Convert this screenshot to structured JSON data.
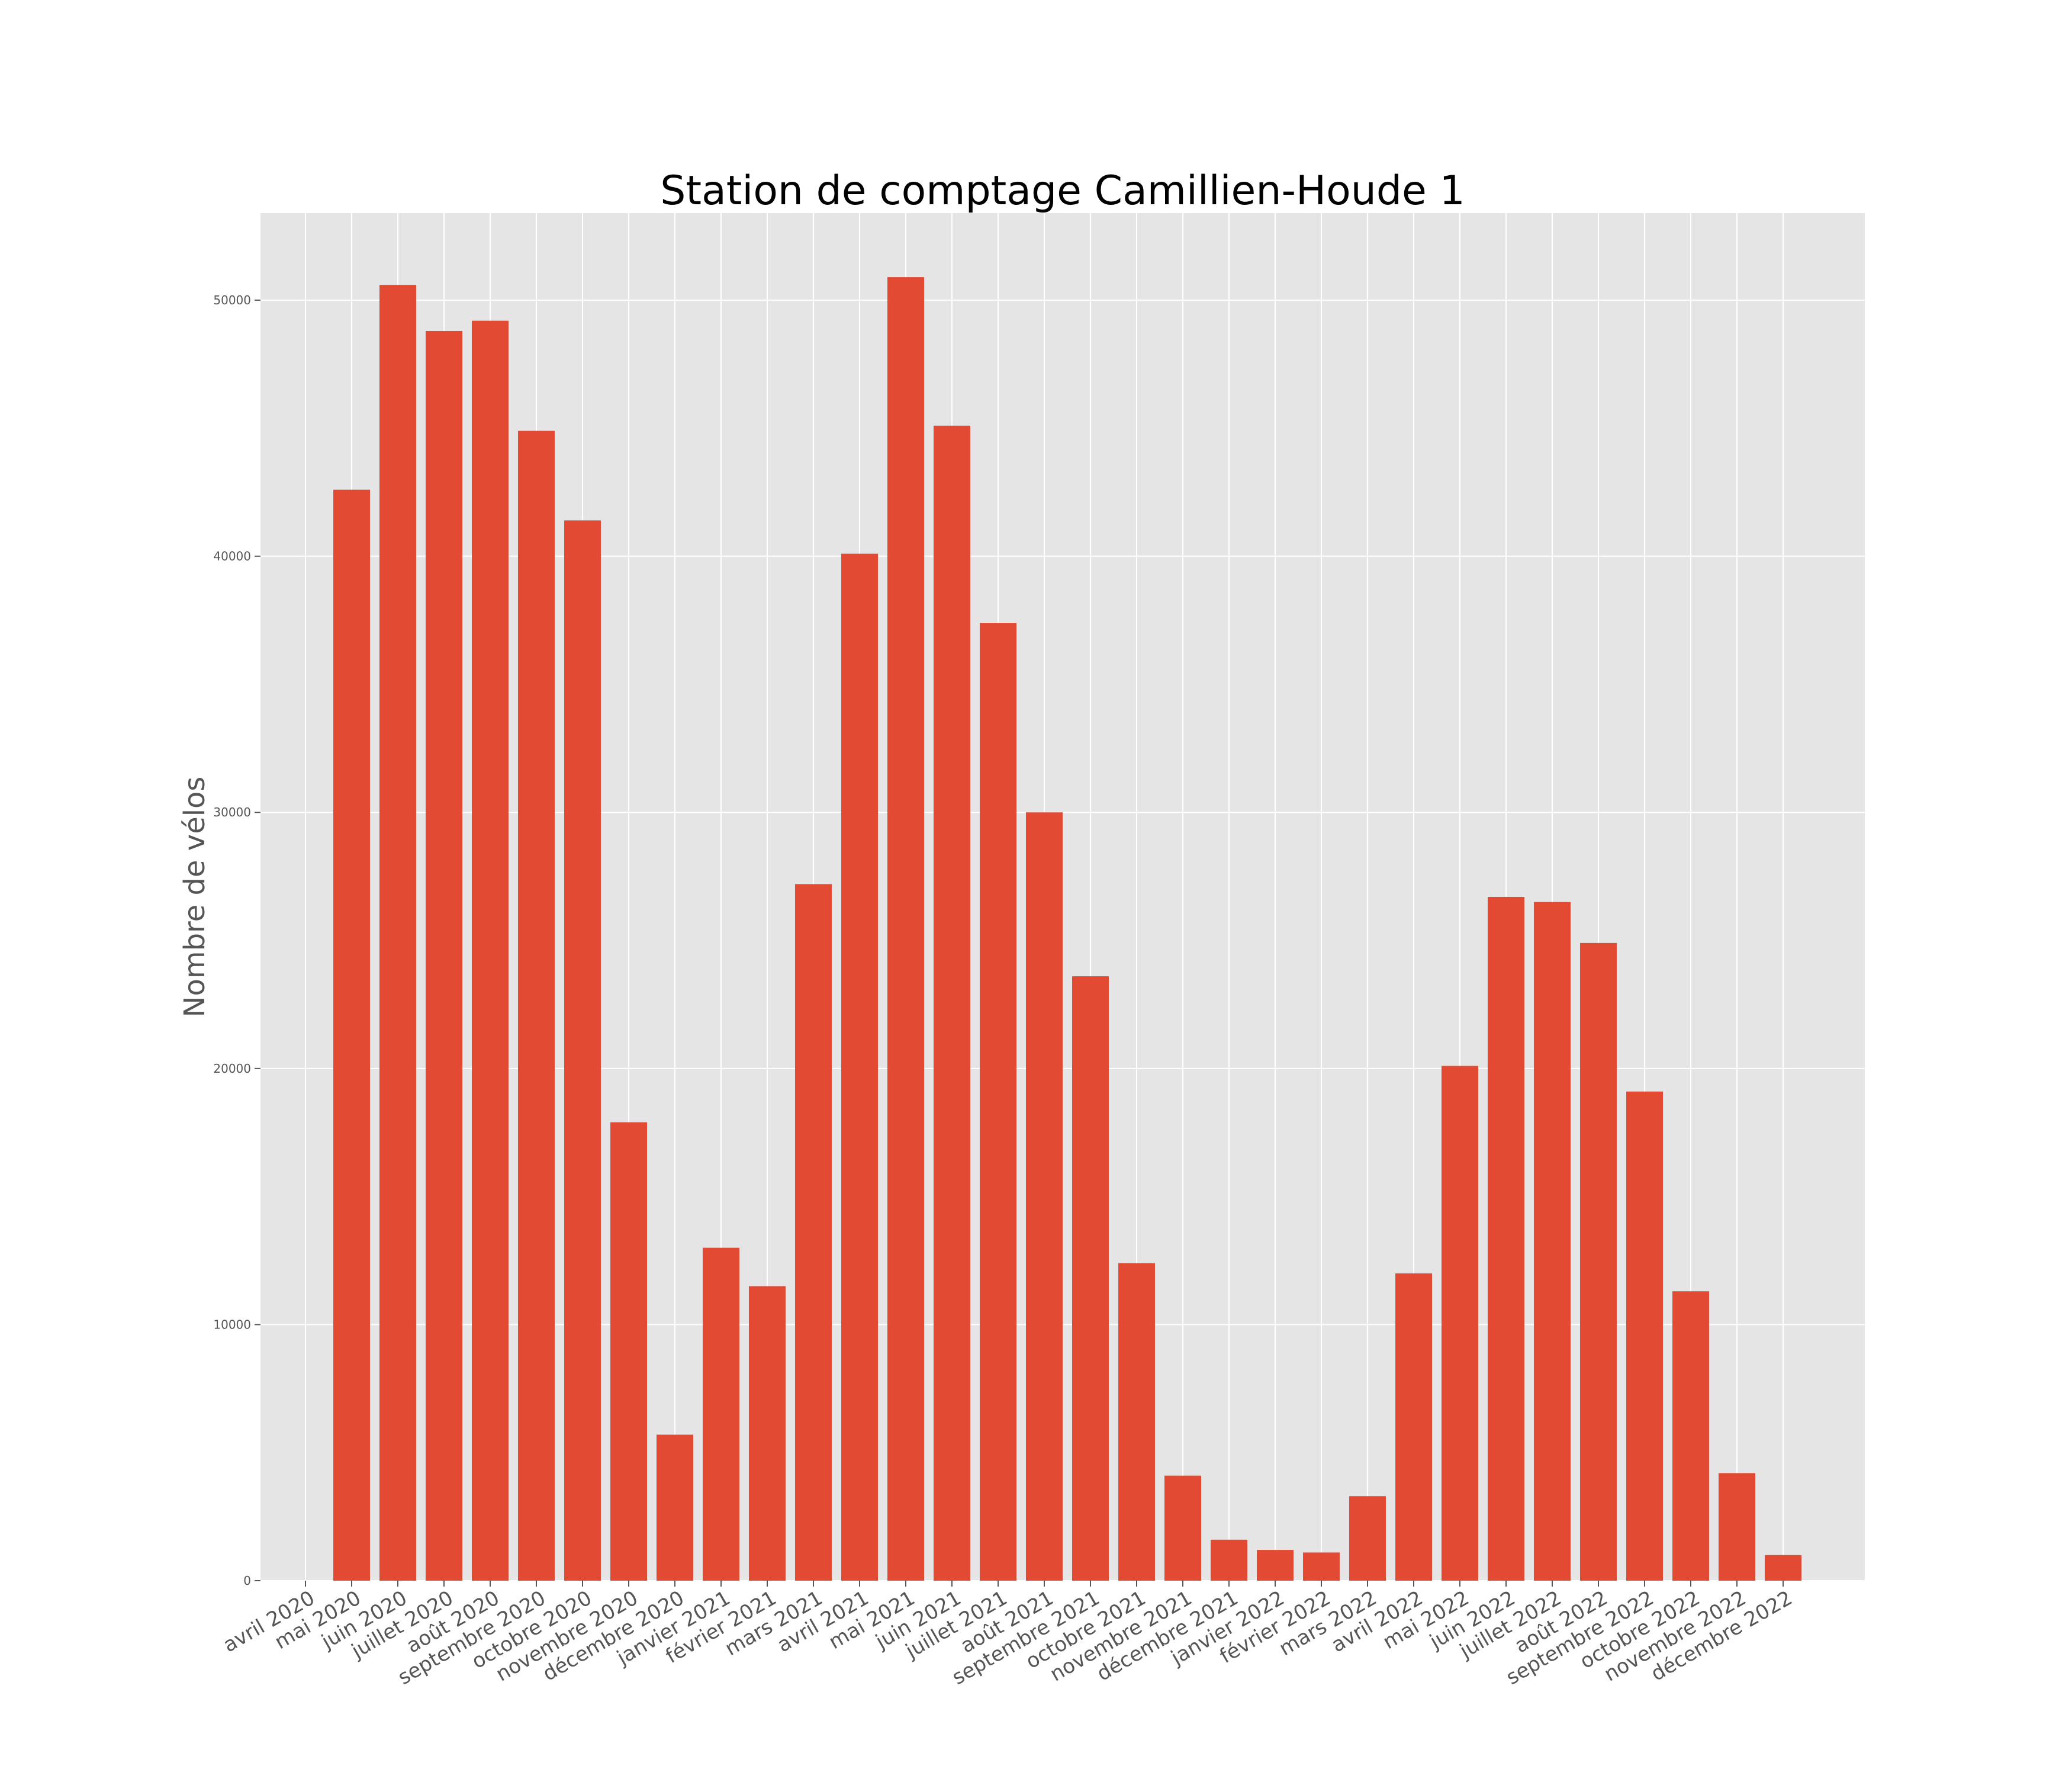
{
  "chart_data": {
    "type": "bar",
    "title": "Station de comptage Camillien-Houde 1",
    "xlabel": "",
    "ylabel": "Nombre de vélos",
    "ylim": [
      0,
      53400
    ],
    "yticks": [
      0,
      10000,
      20000,
      30000,
      40000,
      50000
    ],
    "grid": true,
    "bar_color": "#E24A33",
    "plot_background": "#E5E5E5",
    "grid_color": "#FFFFFF",
    "categories": [
      "avril 2020",
      "mai 2020",
      "juin 2020",
      "juillet 2020",
      "août 2020",
      "septembre 2020",
      "octobre 2020",
      "novembre 2020",
      "décembre 2020",
      "janvier 2021",
      "février 2021",
      "mars 2021",
      "avril 2021",
      "mai 2021",
      "juin 2021",
      "juillet 2021",
      "août 2021",
      "septembre 2021",
      "octobre 2021",
      "novembre 2021",
      "décembre 2021",
      "janvier 2022",
      "février 2022",
      "mars 2022",
      "avril 2022",
      "mai 2022",
      "juin 2022",
      "juillet 2022",
      "août 2022",
      "septembre 2022",
      "octobre 2022",
      "novembre 2022",
      "décembre 2022"
    ],
    "values": [
      0,
      42600,
      50600,
      48800,
      49200,
      44900,
      41400,
      17900,
      5700,
      13000,
      11500,
      27200,
      40100,
      50900,
      45100,
      37400,
      30000,
      23600,
      12400,
      4100,
      1600,
      1200,
      1100,
      3300,
      12000,
      20100,
      26700,
      26500,
      24900,
      19100,
      11300,
      4200,
      1000
    ]
  }
}
